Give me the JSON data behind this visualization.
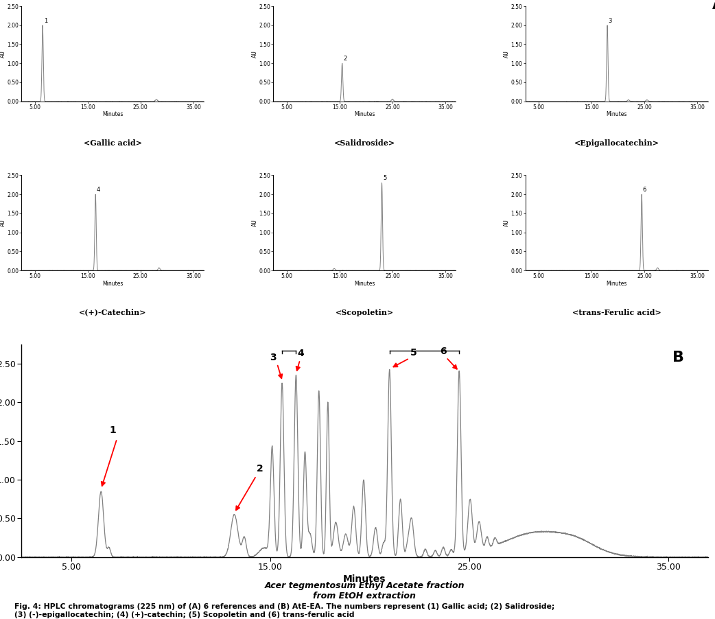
{
  "panel_A_label": "A",
  "panel_B_label": "B",
  "subplot_titles": [
    "<Gallic acid>",
    "<Salidroside>",
    "<Epigallocatechin>",
    "<(+)-Catechin>",
    "<Scopoletin>",
    "<trans-Ferulic acid>"
  ],
  "peak_numbers": [
    1,
    2,
    3,
    4,
    5,
    6
  ],
  "peak_positions_x": [
    6.5,
    15.5,
    18.0,
    16.5,
    23.0,
    24.5
  ],
  "peak_heights": [
    2.0,
    1.0,
    2.0,
    2.0,
    2.3,
    2.0
  ],
  "small_noise_positions": [
    [
      [
        28.0,
        0.05
      ]
    ],
    [
      [
        25.0,
        0.06
      ]
    ],
    [
      [
        22.0,
        0.04
      ],
      [
        25.5,
        0.04
      ]
    ],
    [
      [
        28.5,
        0.07
      ]
    ],
    [
      [
        14.0,
        0.05
      ]
    ],
    [
      [
        27.5,
        0.07
      ]
    ]
  ],
  "xlabel": "Minutes",
  "ylabel": "AU",
  "xlim": [
    2.5,
    37.0
  ],
  "ylim": [
    0.0,
    2.5
  ],
  "xticks": [
    5.0,
    15.0,
    25.0,
    35.0
  ],
  "xticklabels": [
    "5.00",
    "15.00",
    "25.00",
    "35.00"
  ],
  "yticks": [
    0.0,
    0.5,
    1.0,
    1.5,
    2.0,
    2.5
  ],
  "yticklabels": [
    "0.00",
    "0.50",
    "1.00",
    "1.50",
    "2.00",
    "2.50"
  ],
  "line_color": "#808080",
  "bg_color": "#ffffff",
  "fig_caption_bold": "Fig. 4: HPLC chromatograms (225 nm) of (A) 6 references and (B) AtE-EA. The numbers represent (1) Gallic acid; (2) Salidroside;\n(3) (-)-epigallocatechin; (4) (+)-catechin; (5) Scopoletin and (6) trans-ferulic acid",
  "panel_B_title_line1": "Acer tegmentosum",
  "panel_B_title_line1b": " Ethyl Acetate fraction",
  "panel_B_title_line2": "from EtOH extraction",
  "arrow_color": "#ff0000"
}
